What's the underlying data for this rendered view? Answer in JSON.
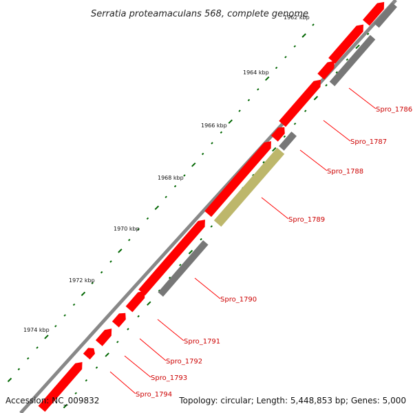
{
  "title": "Serratia proteamaculans 568, complete genome",
  "accession": "Accession: NC_009832",
  "topology": "Topology: circular; Length: 5,448,853 bp; Genes: 5,000",
  "colors": {
    "backbone": "#888888",
    "forward_gene": "#ff0000",
    "reverse_gene": "#777777",
    "highlight_gene": "#bdb76b",
    "label_line": "#ff0000",
    "tick": "#006600"
  },
  "ticks": [
    {
      "label": "1962 kbp",
      "faded": true
    },
    {
      "label": "1964 kbp"
    },
    {
      "label": "1966 kbp"
    },
    {
      "label": "1968 kbp"
    },
    {
      "label": "1970 kbp"
    },
    {
      "label": "1972 kbp"
    },
    {
      "label": "1974 kbp"
    }
  ],
  "gene_labels": [
    "Spro_1786",
    "Spro_1787",
    "Spro_1788",
    "Spro_1789",
    "Spro_1790",
    "Spro_1791",
    "Spro_1792",
    "Spro_1793",
    "Spro_1794"
  ]
}
